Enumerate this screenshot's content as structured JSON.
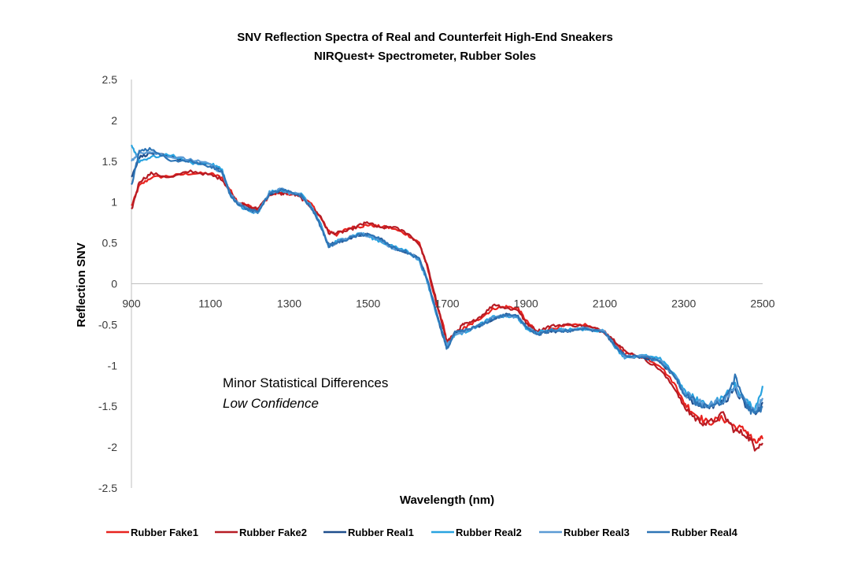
{
  "chart_data": {
    "type": "line",
    "title": "SNV Reflection Spectra of Real and Counterfeit High-End Sneakers",
    "subtitle": "NIRQuest+ Spectrometer, Rubber Soles",
    "xlabel": "Wavelength (nm)",
    "ylabel": "Reflection SNV",
    "xlim": [
      900,
      2500
    ],
    "ylim": [
      -2.5,
      2.5
    ],
    "xticks": [
      "900",
      "1100",
      "1300",
      "1500",
      "1700",
      "1900",
      "2100",
      "2300",
      "2500"
    ],
    "yticks": [
      "2.5",
      "2",
      "1.5",
      "1",
      "0.5",
      "0",
      "-0.5",
      "-1",
      "-1.5",
      "-2",
      "-2.5"
    ],
    "grid": false,
    "legend_position": "bottom",
    "annotations": [
      "Minor Statistical Differences",
      "Low Confidence"
    ],
    "x": [
      900,
      920,
      950,
      1000,
      1050,
      1100,
      1130,
      1150,
      1170,
      1200,
      1220,
      1250,
      1280,
      1300,
      1330,
      1360,
      1380,
      1400,
      1420,
      1450,
      1480,
      1500,
      1530,
      1560,
      1600,
      1630,
      1650,
      1670,
      1690,
      1700,
      1720,
      1740,
      1760,
      1790,
      1820,
      1850,
      1880,
      1900,
      1930,
      1960,
      2000,
      2050,
      2100,
      2130,
      2150,
      2200,
      2240,
      2280,
      2300,
      2330,
      2360,
      2400,
      2430,
      2460,
      2480,
      2500
    ],
    "series": [
      {
        "name": "Rubber Fake1",
        "color": "#e8231f",
        "values": [
          0.95,
          1.2,
          1.3,
          1.32,
          1.35,
          1.35,
          1.3,
          1.15,
          1.0,
          0.95,
          0.9,
          1.08,
          1.12,
          1.1,
          1.08,
          0.95,
          0.8,
          0.65,
          0.6,
          0.68,
          0.7,
          0.72,
          0.7,
          0.68,
          0.6,
          0.5,
          0.2,
          -0.2,
          -0.5,
          -0.72,
          -0.6,
          -0.55,
          -0.5,
          -0.4,
          -0.3,
          -0.28,
          -0.3,
          -0.45,
          -0.6,
          -0.55,
          -0.52,
          -0.5,
          -0.6,
          -0.75,
          -0.85,
          -0.9,
          -1.0,
          -1.25,
          -1.45,
          -1.6,
          -1.7,
          -1.65,
          -1.75,
          -1.8,
          -1.95,
          -1.9
        ]
      },
      {
        "name": "Rubber Fake2",
        "color": "#b71c24",
        "values": [
          0.9,
          1.25,
          1.35,
          1.3,
          1.38,
          1.33,
          1.28,
          1.12,
          1.0,
          0.93,
          0.92,
          1.1,
          1.1,
          1.12,
          1.05,
          0.92,
          0.82,
          0.62,
          0.62,
          0.65,
          0.72,
          0.75,
          0.68,
          0.7,
          0.62,
          0.48,
          0.22,
          -0.15,
          -0.55,
          -0.7,
          -0.62,
          -0.5,
          -0.48,
          -0.38,
          -0.25,
          -0.3,
          -0.32,
          -0.48,
          -0.58,
          -0.52,
          -0.5,
          -0.52,
          -0.58,
          -0.72,
          -0.82,
          -0.92,
          -1.05,
          -1.3,
          -1.5,
          -1.65,
          -1.72,
          -1.6,
          -1.8,
          -1.85,
          -2.0,
          -1.95
        ]
      },
      {
        "name": "Rubber Real1",
        "color": "#1f4e8c",
        "values": [
          1.3,
          1.55,
          1.6,
          1.55,
          1.5,
          1.45,
          1.38,
          1.1,
          0.98,
          0.9,
          0.88,
          1.1,
          1.15,
          1.12,
          1.08,
          0.9,
          0.7,
          0.48,
          0.5,
          0.55,
          0.6,
          0.6,
          0.55,
          0.45,
          0.38,
          0.3,
          0.05,
          -0.3,
          -0.65,
          -0.78,
          -0.6,
          -0.58,
          -0.55,
          -0.5,
          -0.42,
          -0.38,
          -0.4,
          -0.52,
          -0.62,
          -0.58,
          -0.58,
          -0.55,
          -0.6,
          -0.78,
          -0.88,
          -0.9,
          -0.95,
          -1.15,
          -1.35,
          -1.45,
          -1.5,
          -1.45,
          -1.3,
          -1.5,
          -1.6,
          -1.45
        ]
      },
      {
        "name": "Rubber Real2",
        "color": "#29a3e0",
        "values": [
          1.7,
          1.5,
          1.55,
          1.58,
          1.48,
          1.47,
          1.4,
          1.08,
          0.97,
          0.88,
          0.86,
          1.12,
          1.14,
          1.13,
          1.1,
          0.92,
          0.72,
          0.45,
          0.52,
          0.57,
          0.62,
          0.58,
          0.52,
          0.46,
          0.4,
          0.28,
          0.02,
          -0.32,
          -0.62,
          -0.75,
          -0.62,
          -0.6,
          -0.56,
          -0.48,
          -0.4,
          -0.4,
          -0.42,
          -0.55,
          -0.6,
          -0.56,
          -0.56,
          -0.56,
          -0.58,
          -0.8,
          -0.9,
          -0.88,
          -0.92,
          -1.12,
          -1.3,
          -1.42,
          -1.48,
          -1.4,
          -1.25,
          -1.45,
          -1.55,
          -1.25
        ]
      },
      {
        "name": "Rubber Real3",
        "color": "#5b9bd5",
        "values": [
          1.5,
          1.6,
          1.62,
          1.55,
          1.52,
          1.46,
          1.35,
          1.1,
          0.99,
          0.9,
          0.87,
          1.11,
          1.16,
          1.11,
          1.09,
          0.91,
          0.71,
          0.47,
          0.51,
          0.56,
          0.61,
          0.59,
          0.54,
          0.44,
          0.39,
          0.29,
          0.04,
          -0.31,
          -0.63,
          -0.76,
          -0.61,
          -0.59,
          -0.55,
          -0.49,
          -0.41,
          -0.39,
          -0.41,
          -0.53,
          -0.61,
          -0.57,
          -0.57,
          -0.54,
          -0.59,
          -0.79,
          -0.89,
          -0.89,
          -0.94,
          -1.14,
          -1.33,
          -1.44,
          -1.49,
          -1.43,
          -1.28,
          -1.48,
          -1.58,
          -1.4
        ]
      },
      {
        "name": "Rubber Real4",
        "color": "#2e75b6",
        "values": [
          1.2,
          1.62,
          1.65,
          1.5,
          1.5,
          1.44,
          1.37,
          1.09,
          0.98,
          0.9,
          0.88,
          1.1,
          1.15,
          1.12,
          1.08,
          0.9,
          0.7,
          0.46,
          0.5,
          0.55,
          0.6,
          0.6,
          0.55,
          0.45,
          0.38,
          0.3,
          0.05,
          -0.3,
          -0.64,
          -0.8,
          -0.6,
          -0.58,
          -0.55,
          -0.5,
          -0.42,
          -0.38,
          -0.4,
          -0.52,
          -0.62,
          -0.58,
          -0.58,
          -0.55,
          -0.6,
          -0.78,
          -0.88,
          -0.9,
          -0.95,
          -1.15,
          -1.35,
          -1.45,
          -1.5,
          -1.45,
          -1.15,
          -1.5,
          -1.6,
          -1.5
        ]
      }
    ]
  }
}
